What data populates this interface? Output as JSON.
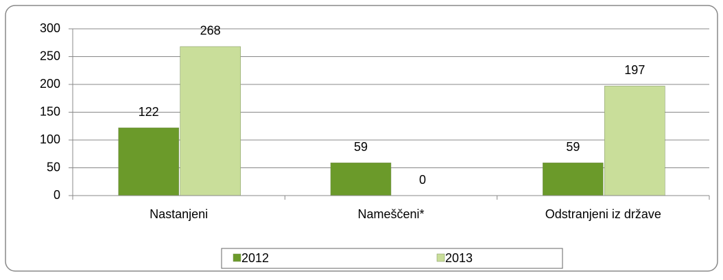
{
  "chart_data": {
    "type": "bar",
    "categories": [
      "Nastanjeni",
      "Nameščeni*",
      "Odstranjeni iz države"
    ],
    "series": [
      {
        "name": "2012",
        "color": "#6b9a2a",
        "values": [
          122,
          59,
          59
        ]
      },
      {
        "name": "2013",
        "color": "#c9de9a",
        "values": [
          268,
          0,
          197
        ]
      }
    ],
    "ylim": [
      0,
      300
    ],
    "yticks": [
      0,
      50,
      100,
      150,
      200,
      250,
      300
    ],
    "grid": true,
    "legend": "bottom"
  }
}
